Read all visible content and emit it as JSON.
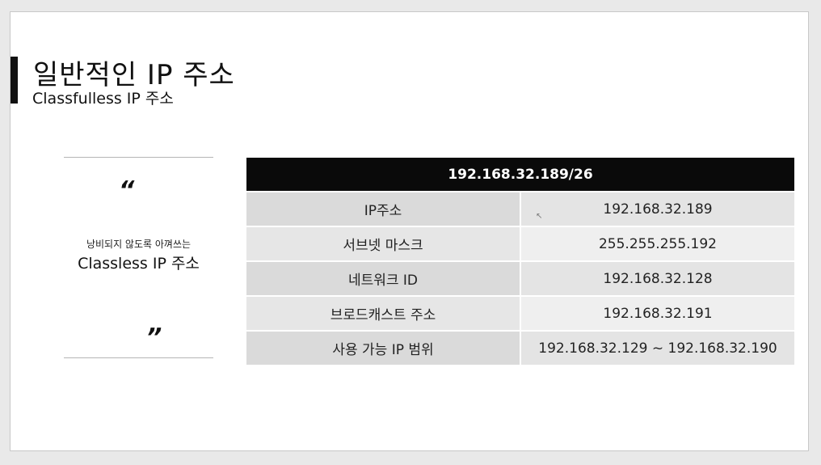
{
  "slide": {
    "title": "일반적인 IP 주소",
    "subtitle": "Classfulless IP 주소"
  },
  "quote": {
    "open_mark": "“",
    "close_mark": "”",
    "small_text": "낭비되지 않도록 아껴쓰는",
    "main_text": "Classless IP 주소"
  },
  "table": {
    "header": "192.168.32.189/26",
    "rows": [
      {
        "label": "IP주소",
        "value": "192.168.32.189"
      },
      {
        "label": "서브넷 마스크",
        "value": "255.255.255.192"
      },
      {
        "label": "네트워크 ID",
        "value": "192.168.32.128"
      },
      {
        "label": "브로드캐스트 주소",
        "value": "192.168.32.191"
      },
      {
        "label": "사용 가능 IP 범위",
        "value": "192.168.32.129 ~ 192.168.32.190"
      }
    ]
  }
}
